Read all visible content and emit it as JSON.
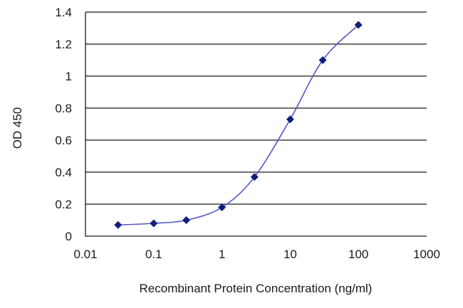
{
  "chart_data": {
    "type": "scatter",
    "title": "",
    "xlabel": "Recombinant Protein Concentration (ng/ml)",
    "ylabel": "OD 450",
    "x_scale": "log",
    "xlim": [
      0.01,
      1000
    ],
    "ylim": [
      0,
      1.4
    ],
    "x_ticks": [
      "0.01",
      "0.1",
      "1",
      "10",
      "100",
      "1000"
    ],
    "y_ticks": [
      "0",
      "0.2",
      "0.4",
      "0.6",
      "0.8",
      "1",
      "1.2",
      "1.4"
    ],
    "grid": "horizontal",
    "legend": "none",
    "series": [
      {
        "x": [
          0.03,
          0.1,
          0.3,
          1,
          3,
          10,
          30,
          100
        ],
        "y": [
          0.07,
          0.08,
          0.1,
          0.18,
          0.37,
          0.73,
          1.1,
          1.32
        ],
        "fit_line": true
      }
    ],
    "colors": {
      "line": "#5555c8",
      "marker": "#10207a",
      "grid": "#1a1a1a"
    }
  }
}
